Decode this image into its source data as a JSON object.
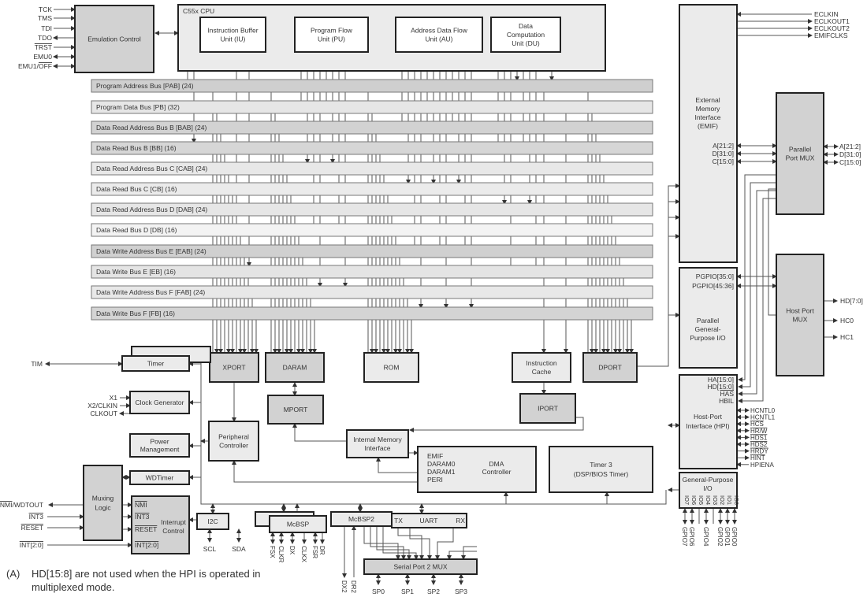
{
  "emulation": {
    "label": "Emulation Control",
    "pins": [
      {
        "t": "TCK",
        "dir": "in"
      },
      {
        "t": "TMS",
        "dir": "in"
      },
      {
        "t": "TDI",
        "dir": "in"
      },
      {
        "t": "TDO",
        "dir": "out"
      },
      {
        "t": "TRST",
        "ol": true,
        "dir": "in"
      },
      {
        "t": "EMU0",
        "dir": "bi"
      },
      {
        "parts": [
          {
            "t": "EMU1/"
          },
          {
            "t": "OFF",
            "ol": true
          }
        ],
        "dir": "bi"
      }
    ]
  },
  "cpu": {
    "title": "C55x CPU",
    "units": [
      [
        "Instruction Buffer",
        "Unit (IU)"
      ],
      [
        "Program Flow",
        "Unit (PU)"
      ],
      [
        "Address Data Flow",
        "Unit (AU)"
      ],
      [
        "Data",
        "Computation",
        "Unit (DU)"
      ]
    ]
  },
  "buses": [
    "Program Address Bus   [PAB]   (24)",
    "Program Data Bus [PB] (32)",
    "Data Read Address Bus B [BAB] (24)",
    "Data Read Bus B [BB] (16)",
    "Data Read Address Bus C [CAB] (24)",
    "Data Read Bus C [CB] (16)",
    "Data Read Address Bus D [DAB] (24)",
    "Data Read Bus D [DB] (16)",
    "Data Write Address Bus E [EAB] (24)",
    "Data Write Bus E [EB] (16)",
    "Data Write Address Bus F [FAB] (24)",
    "Data Write Bus F [FB] (16)"
  ],
  "emif": {
    "label": [
      "External",
      "Memory",
      "Interface",
      "(EMIF)"
    ],
    "ports": [
      "A[21:2]",
      "D[31:0]",
      "C[15:0]"
    ],
    "clock_pins": [
      "ECLKIN",
      "ECLKOUT1",
      "ECLKOUT2",
      "EMIFCLKS"
    ]
  },
  "parallel_port_mux": {
    "label": [
      "Parallel",
      "Port MUX"
    ],
    "outputs": [
      "A[21:2]",
      "D[31:0]",
      "C[15:0]"
    ]
  },
  "pgpio": {
    "ports": [
      "PGPIO[35:0]",
      "PGPIO[45:36]"
    ],
    "label": [
      "Parallel",
      "General-",
      "Purpose I/O"
    ]
  },
  "host_port_mux": {
    "label": [
      "Host Port",
      "MUX"
    ],
    "outputs": [
      "HD[7:0]",
      "HC0",
      "HC1"
    ]
  },
  "hpi": {
    "ports": [
      {
        "t": "HA[15:0]"
      },
      {
        "t": "HD[15:0]"
      },
      {
        "t": "HAS",
        "ol": true
      },
      {
        "t": "HBIL"
      }
    ],
    "label": [
      "Host-Port",
      "Interface  (HPI)"
    ],
    "pins": [
      {
        "t": "HCNTL0",
        "dir": "bi"
      },
      {
        "t": "HCNTL1",
        "dir": "bi"
      },
      {
        "t": "HCS",
        "ol": true,
        "dir": "bi"
      },
      {
        "t": "HR/W",
        "ol": true,
        "dir": "bi"
      },
      {
        "t": "HDS1",
        "ol": true,
        "dir": "bi"
      },
      {
        "t": "HDS2",
        "ol": true,
        "dir": "bi"
      },
      {
        "t": "HRDY",
        "ol": true,
        "dir": "out"
      },
      {
        "t": "HINT",
        "ol": true,
        "dir": "out"
      },
      {
        "t": "HPIENA",
        "dir": "in"
      }
    ]
  },
  "gpio": {
    "label": [
      "General-Purpose",
      "I/O"
    ],
    "io": [
      "IO7",
      "IO6",
      "IO5",
      "IO4",
      "IO3",
      "IO2",
      "IO1",
      "IO0"
    ],
    "pins": [
      "GPIO7",
      "GPIO6",
      "",
      "GPIO4",
      "",
      "GPIO2",
      "GPIO1",
      "GPIO0"
    ]
  },
  "memory": {
    "xport": "XPORT",
    "daram": "DARAM",
    "rom": "ROM",
    "icache": [
      "Instruction",
      "Cache"
    ],
    "dport": "DPORT",
    "mport": "MPORT",
    "iport": "IPORT"
  },
  "timer": {
    "label": "Timer",
    "pin": "TIM"
  },
  "clock": {
    "label": "Clock Generator",
    "pins": [
      "X1",
      "X2/CLKIN",
      "CLKOUT"
    ]
  },
  "power": [
    "Power",
    "Management"
  ],
  "peripheral_controller": [
    "Peripheral",
    "Controller"
  ],
  "internal_memory_interface": [
    "Internal Memory",
    "Interface"
  ],
  "dma": {
    "label": [
      "DMA",
      "Controller"
    ],
    "ports": [
      "EMIF",
      "DARAM0",
      "DARAM1",
      "PERI"
    ]
  },
  "timer3": [
    "Timer 3",
    "(DSP/BIOS Timer)"
  ],
  "wdtimer": "WDTimer",
  "muxing": [
    "Muxing",
    "Logic"
  ],
  "interrupt": {
    "label": [
      "Interrupt",
      "Control"
    ],
    "ports": [
      {
        "t": "NMI",
        "ol": true
      },
      {
        "t": "INT3",
        "ol": true
      },
      {
        "t": "RESET",
        "ol": true
      },
      {
        "t": "INT[2:0]",
        "ol": true
      }
    ]
  },
  "interrupt_pins": [
    {
      "parts": [
        {
          "t": "NMI",
          "ol": true
        },
        {
          "t": "/WDTOUT"
        }
      ]
    },
    {
      "t": "INT3",
      "ol": true
    },
    {
      "t": "RESET",
      "ol": true
    },
    {
      "t": "INT[2:0]",
      "ol": true
    }
  ],
  "i2c": {
    "label": "I2C",
    "pins": [
      "SCL",
      "SDA"
    ]
  },
  "mcbsp": {
    "label": "McBSP",
    "pins": [
      "FSX",
      "CLKR",
      "DX",
      "CLKX",
      "FSR",
      "DR"
    ]
  },
  "mcbsp2": {
    "label": "McBSP2",
    "pins": [
      "DX2",
      "DR2"
    ]
  },
  "uart": {
    "label": "UART",
    "tx": "TX",
    "rx": "RX"
  },
  "sp2mux": {
    "label": "Serial Port 2 MUX",
    "pins": [
      "SP0",
      "SP1",
      "SP2",
      "SP3"
    ]
  },
  "footnote": {
    "marker": "(A)",
    "lines": [
      "HD[15:8] are not used when the HPI is operated in",
      "multiplexed mode."
    ]
  },
  "colors": {
    "block_dark": "#d2d2d2",
    "block_light": "#ebebeb",
    "stroke": "#222222",
    "wire": "#555555"
  }
}
